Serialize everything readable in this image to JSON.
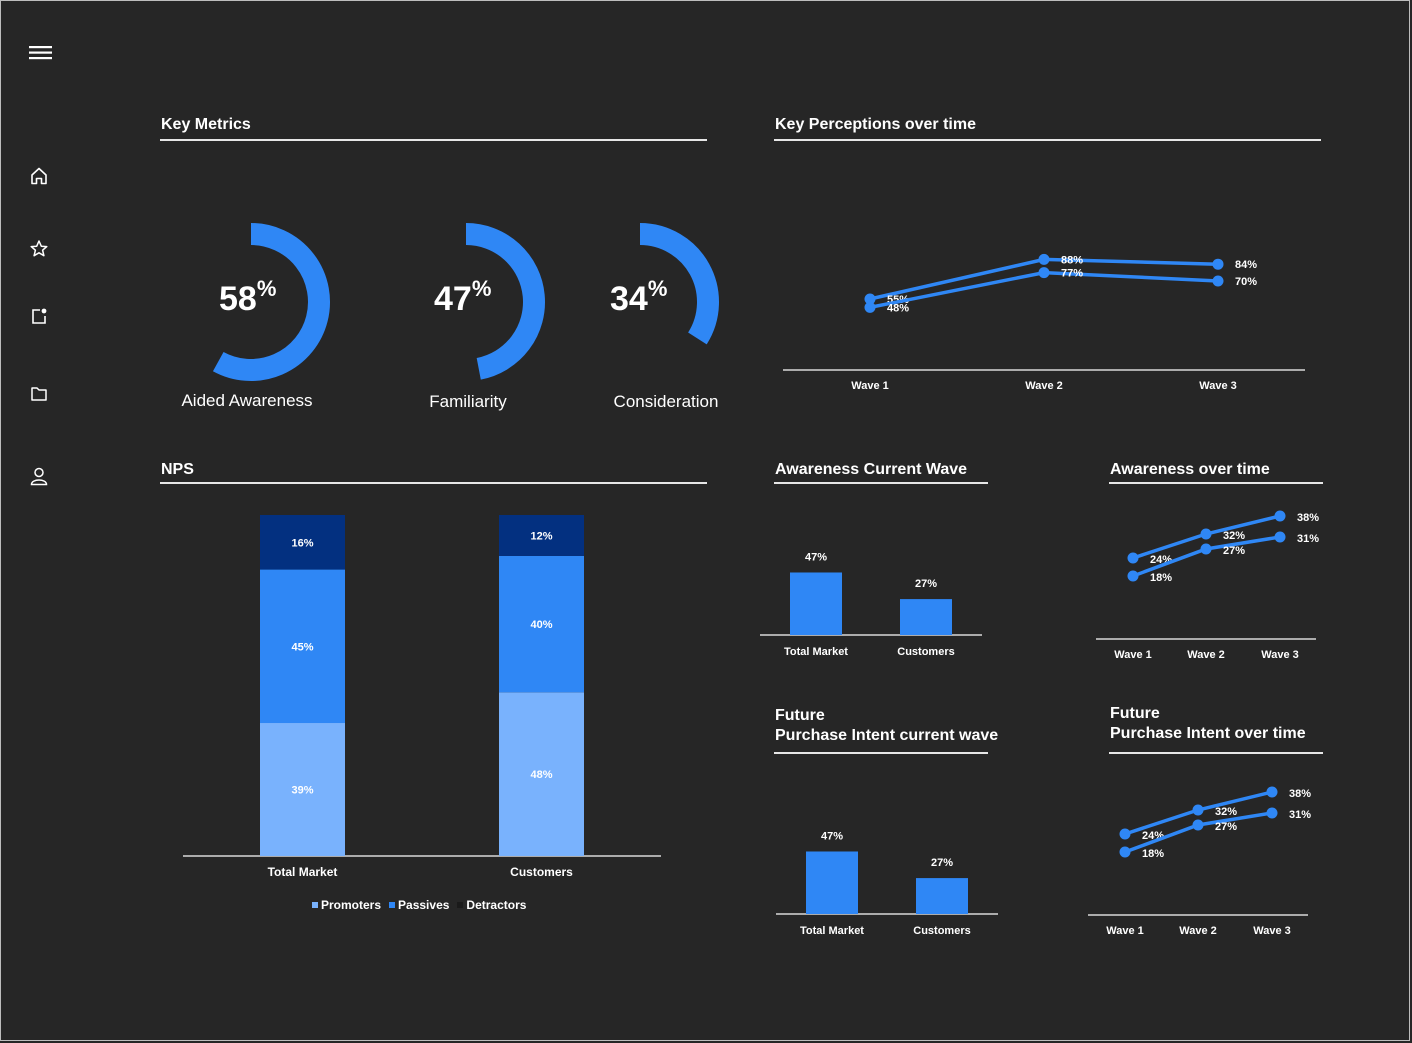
{
  "colors": {
    "background": "#262626",
    "ring": "#2f87f5",
    "line": "#2f87f5",
    "promoters": "#79b2fd",
    "passives": "#2f87f5",
    "detractors": "#033080",
    "bar": "#2f87f5"
  },
  "sidebar": {
    "menu_icon": "hamburger-menu-icon",
    "items": [
      {
        "icon": "home-icon"
      },
      {
        "icon": "star-icon"
      },
      {
        "icon": "notification-icon"
      },
      {
        "icon": "folder-icon"
      },
      {
        "icon": "user-icon"
      }
    ]
  },
  "key_metrics": {
    "title": "Key Metrics",
    "items": [
      {
        "value": "58",
        "unit": "%",
        "label": "Aided Awareness",
        "fraction": 0.58
      },
      {
        "value": "47",
        "unit": "%",
        "label": "Familiarity",
        "fraction": 0.47
      },
      {
        "value": "34",
        "unit": "%",
        "label": "Consideration",
        "fraction": 0.34
      }
    ]
  },
  "perceptions": {
    "title": "Key Perceptions over time"
  },
  "nps": {
    "title": "NPS",
    "legend": [
      "Promoters",
      "Passives",
      "Detractors"
    ]
  },
  "awareness_current": {
    "title": "Awareness Current Wave"
  },
  "awareness_time": {
    "title": "Awareness over time"
  },
  "fpi_current": {
    "title": "Future\nPurchase Intent  current wave"
  },
  "fpi_time": {
    "title": "Future\nPurchase Intent over time"
  },
  "chart_data": [
    {
      "id": "perceptions",
      "type": "line",
      "categories": [
        "Wave 1",
        "Wave 2",
        "Wave 3"
      ],
      "series": [
        {
          "values": [
            55,
            88,
            84
          ],
          "labels": [
            "55%",
            "88%",
            "84%"
          ]
        },
        {
          "values": [
            48,
            77,
            70
          ],
          "labels": [
            "48%",
            "77%",
            "70%"
          ]
        }
      ],
      "ylim": [
        0,
        100
      ]
    },
    {
      "id": "nps",
      "type": "bar",
      "stacked": true,
      "categories": [
        "Total Market",
        "Customers"
      ],
      "series": [
        {
          "name": "Promoters",
          "values": [
            39,
            48
          ],
          "labels": [
            "39%",
            "48%"
          ]
        },
        {
          "name": "Passives",
          "values": [
            45,
            40
          ],
          "labels": [
            "45%",
            "40%"
          ]
        },
        {
          "name": "Detractors",
          "values": [
            16,
            12
          ],
          "labels": [
            "16%",
            "12%"
          ]
        }
      ],
      "ylim": [
        0,
        100
      ],
      "legend": "bottom"
    },
    {
      "id": "awareness_current",
      "type": "bar",
      "categories": [
        "Total Market",
        "Customers"
      ],
      "values": [
        47,
        27
      ],
      "labels": [
        "47%",
        "27%"
      ],
      "ylim": [
        0,
        100
      ]
    },
    {
      "id": "awareness_time",
      "type": "line",
      "categories": [
        "Wave 1",
        "Wave 2",
        "Wave 3"
      ],
      "series": [
        {
          "values": [
            24,
            32,
            38
          ],
          "labels": [
            "24%",
            "32%",
            "38%"
          ]
        },
        {
          "values": [
            18,
            27,
            31
          ],
          "labels": [
            "18%",
            "27%",
            "31%"
          ]
        }
      ],
      "ylim": [
        0,
        50
      ]
    },
    {
      "id": "fpi_current",
      "type": "bar",
      "categories": [
        "Total Market",
        "Customers"
      ],
      "values": [
        47,
        27
      ],
      "labels": [
        "47%",
        "27%"
      ],
      "ylim": [
        0,
        100
      ]
    },
    {
      "id": "fpi_time",
      "type": "line",
      "categories": [
        "Wave 1",
        "Wave 2",
        "Wave 3"
      ],
      "series": [
        {
          "values": [
            24,
            32,
            38
          ],
          "labels": [
            "24%",
            "32%",
            "38%"
          ]
        },
        {
          "values": [
            18,
            27,
            31
          ],
          "labels": [
            "18%",
            "27%",
            "31%"
          ]
        }
      ],
      "ylim": [
        0,
        50
      ]
    }
  ]
}
